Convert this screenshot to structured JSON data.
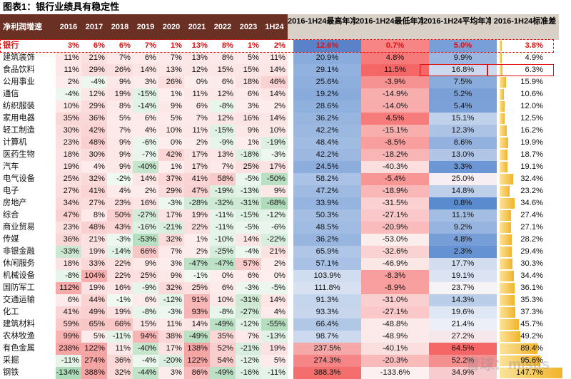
{
  "title": "图表1：银行业绩具有稳定性",
  "watermark": "雪球：misus",
  "chart_data": {
    "type": "table",
    "headers": [
      "净利润增速",
      "2016",
      "2017",
      "2018",
      "2019",
      "2020",
      "2021",
      "2022",
      "2023",
      "1H24",
      "2016-1H24最高年净利润增速",
      "2016-1H24最低年净利润增速",
      "2016-1H24平均年净利润增速",
      "2016-1H24标准差"
    ],
    "rows": [
      {
        "name": "银行",
        "vals": [
          "3%",
          "6%",
          "6%",
          "7%",
          "1%",
          "13%",
          "8%",
          "1%",
          "2%"
        ],
        "max": "12.6%",
        "min": "0.7%",
        "avg": "5.0%",
        "std": "3.8%"
      },
      {
        "name": "建筑装饰",
        "vals": [
          "11%",
          "21%",
          "7%",
          "6%",
          "7%",
          "13%",
          "8%",
          "5%",
          "11%"
        ],
        "max": "20.9%",
        "min": "4.8%",
        "avg": "9.9%",
        "std": "4.9%"
      },
      {
        "name": "食品饮料",
        "vals": [
          "11%",
          "29%",
          "26%",
          "14%",
          "13%",
          "12%",
          "15%",
          "15%",
          "14%"
        ],
        "max": "29.1%",
        "min": "11.5%",
        "avg": "16.8%",
        "std": "6.3%"
      },
      {
        "name": "公用事业",
        "vals": [
          "2%",
          "-4%",
          "9%",
          "3%",
          "26%",
          "0%",
          "6%",
          "18%",
          "46%"
        ],
        "max": "25.6%",
        "min": "-3.9%",
        "avg": "7.5%",
        "std": "15.9%"
      },
      {
        "name": "通信",
        "vals": [
          "-4%",
          "12%",
          "19%",
          "-15%",
          "1%",
          "11%",
          "12%",
          "6%",
          "14%"
        ],
        "max": "19.2%",
        "min": "-14.9%",
        "avg": "5.2%",
        "std": "10.6%"
      },
      {
        "name": "纺织服装",
        "vals": [
          "10%",
          "29%",
          "8%",
          "-14%",
          "9%",
          "6%",
          "-8%",
          "3%",
          "2%"
        ],
        "max": "28.6%",
        "min": "-14.0%",
        "avg": "5.4%",
        "std": "12.0%"
      },
      {
        "name": "家用电器",
        "vals": [
          "35%",
          "36%",
          "5%",
          "6%",
          "5%",
          "7%",
          "12%",
          "16%",
          "14%"
        ],
        "max": "36.2%",
        "min": "4.5%",
        "avg": "15.1%",
        "std": "12.5%"
      },
      {
        "name": "轻工制造",
        "vals": [
          "30%",
          "42%",
          "7%",
          "4%",
          "10%",
          "11%",
          "-15%",
          "9%",
          "10%"
        ],
        "max": "42.2%",
        "min": "-15.1%",
        "avg": "12.3%",
        "std": "16.2%"
      },
      {
        "name": "计算机",
        "vals": [
          "23%",
          "48%",
          "9%",
          "-6%",
          "0%",
          "2%",
          "-9%",
          "1%",
          "-19%"
        ],
        "max": "48.4%",
        "min": "-8.5%",
        "avg": "8.6%",
        "std": "19.9%"
      },
      {
        "name": "医药生物",
        "vals": [
          "18%",
          "30%",
          "9%",
          "-7%",
          "42%",
          "17%",
          "13%",
          "-18%",
          "-3%"
        ],
        "max": "42.2%",
        "min": "-18.2%",
        "avg": "13.0%",
        "std": "18.7%"
      },
      {
        "name": "汽车",
        "vals": [
          "19%",
          "4%",
          "9%",
          "-40%",
          "1%",
          "17%",
          "7%",
          "25%",
          "17%"
        ],
        "max": "24.5%",
        "min": "-40.3%",
        "avg": "3.3%",
        "std": "19.1%"
      },
      {
        "name": "电气设备",
        "vals": [
          "25%",
          "32%",
          "-2%",
          "14%",
          "37%",
          "41%",
          "58%",
          "-5%",
          "-50%"
        ],
        "max": "58.2%",
        "min": "-5.4%",
        "avg": "25.0%",
        "std": "32.4%"
      },
      {
        "name": "电子",
        "vals": [
          "27%",
          "41%",
          "4%",
          "2%",
          "29%",
          "47%",
          "-19%",
          "-13%",
          "9%"
        ],
        "max": "47.2%",
        "min": "-18.9%",
        "avg": "14.8%",
        "std": "23.2%"
      },
      {
        "name": "房地产",
        "vals": [
          "34%",
          "27%",
          "23%",
          "16%",
          "-3%",
          "-28%",
          "-32%",
          "-31%",
          "-68%"
        ],
        "max": "33.9%",
        "min": "-31.5%",
        "avg": "0.8%",
        "std": "34.6%"
      },
      {
        "name": "综合",
        "vals": [
          "47%",
          "8%",
          "50%",
          "-27%",
          "17%",
          "19%",
          "-11%",
          "-15%",
          "-12%"
        ],
        "max": "50.3%",
        "min": "-27.1%",
        "avg": "11.1%",
        "std": "27.4%"
      },
      {
        "name": "商业贸易",
        "vals": [
          "23%",
          "48%",
          "43%",
          "-16%",
          "-21%",
          "22%",
          "-11%",
          "-5%",
          "-6%"
        ],
        "max": "48.5%",
        "min": "-20.9%",
        "avg": "9.2%",
        "std": "27.1%"
      },
      {
        "name": "传媒",
        "vals": [
          "36%",
          "21%",
          "-3%",
          "-53%",
          "32%",
          "1%",
          "-10%",
          "14%",
          "-22%"
        ],
        "max": "36.2%",
        "min": "-53.0%",
        "avg": "4.8%",
        "std": "28.2%"
      },
      {
        "name": "非银金融",
        "vals": [
          "-33%",
          "19%",
          "-14%",
          "66%",
          "7%",
          "2%",
          "-25%",
          "-4%",
          "21%"
        ],
        "max": "65.9%",
        "min": "-32.6%",
        "avg": "2.3%",
        "std": "29.4%"
      },
      {
        "name": "休闲服务",
        "vals": [
          "18%",
          "33%",
          "22%",
          "9%",
          "3%",
          "-47%",
          "-47%",
          "57%",
          "2%"
        ],
        "max": "57.1%",
        "min": "-46.9%",
        "avg": "17.7%",
        "std": "30.3%"
      },
      {
        "name": "机械设备",
        "vals": [
          "-8%",
          "104%",
          "22%",
          "25%",
          "9%",
          "-1%",
          "0%",
          "6%",
          "0%"
        ],
        "max": "103.9%",
        "min": "-8.3%",
        "avg": "19.1%",
        "std": "34.4%"
      },
      {
        "name": "国防军工",
        "vals": [
          "112%",
          "19%",
          "16%",
          "-9%",
          "32%",
          "25%",
          "6%",
          "-3%",
          "-5%"
        ],
        "max": "111.8%",
        "min": "-8.9%",
        "avg": "23.7%",
        "std": "36.1%"
      },
      {
        "name": "交通运输",
        "vals": [
          "6%",
          "44%",
          "-1%",
          "6%",
          "-12%",
          "91%",
          "10%",
          "-31%",
          "14%"
        ],
        "max": "91.3%",
        "min": "-31.0%",
        "avg": "14.3%",
        "std": "35.3%"
      },
      {
        "name": "化工",
        "vals": [
          "41%",
          "49%",
          "19%",
          "-8%",
          "-3%",
          "93%",
          "-8%",
          "-27%",
          "4%"
        ],
        "max": "93.3%",
        "min": "-27.1%",
        "avg": "19.6%",
        "std": "37.3%"
      },
      {
        "name": "建筑材料",
        "vals": [
          "59%",
          "65%",
          "66%",
          "15%",
          "11%",
          "14%",
          "-49%",
          "-12%",
          "-55%"
        ],
        "max": "66.4%",
        "min": "-48.8%",
        "avg": "21.4%",
        "std": "45.7%"
      },
      {
        "name": "农林牧渔",
        "vals": [
          "99%",
          "5%",
          "-11%",
          "94%",
          "38%",
          "-49%",
          "35%",
          "7%",
          "-13%"
        ],
        "max": "98.7%",
        "min": "-48.9%",
        "avg": "27.2%",
        "std": "49.2%"
      },
      {
        "name": "有色金属",
        "vals": [
          "238%",
          "122%",
          "11%",
          "-40%",
          "17%",
          "138%",
          "52%",
          "-21%",
          "19%"
        ],
        "max": "237.5%",
        "min": "-40.1%",
        "avg": "64.5%",
        "std": "89.4%"
      },
      {
        "name": "采掘",
        "vals": [
          "-11%",
          "274%",
          "36%",
          "-4%",
          "-20%",
          "122%",
          "54%",
          "-12%",
          "5%"
        ],
        "max": "274.3%",
        "min": "-20.3%",
        "avg": "52.2%",
        "std": "95.6%"
      },
      {
        "name": "钢铁",
        "vals": [
          "-134%",
          "388%",
          "32%",
          "-44%",
          "3%",
          "86%",
          "-49%",
          "-16%",
          "-11%"
        ],
        "max": "388.3%",
        "min": "-133.6%",
        "avg": "34.9%",
        "std": "147.7%"
      }
    ]
  }
}
